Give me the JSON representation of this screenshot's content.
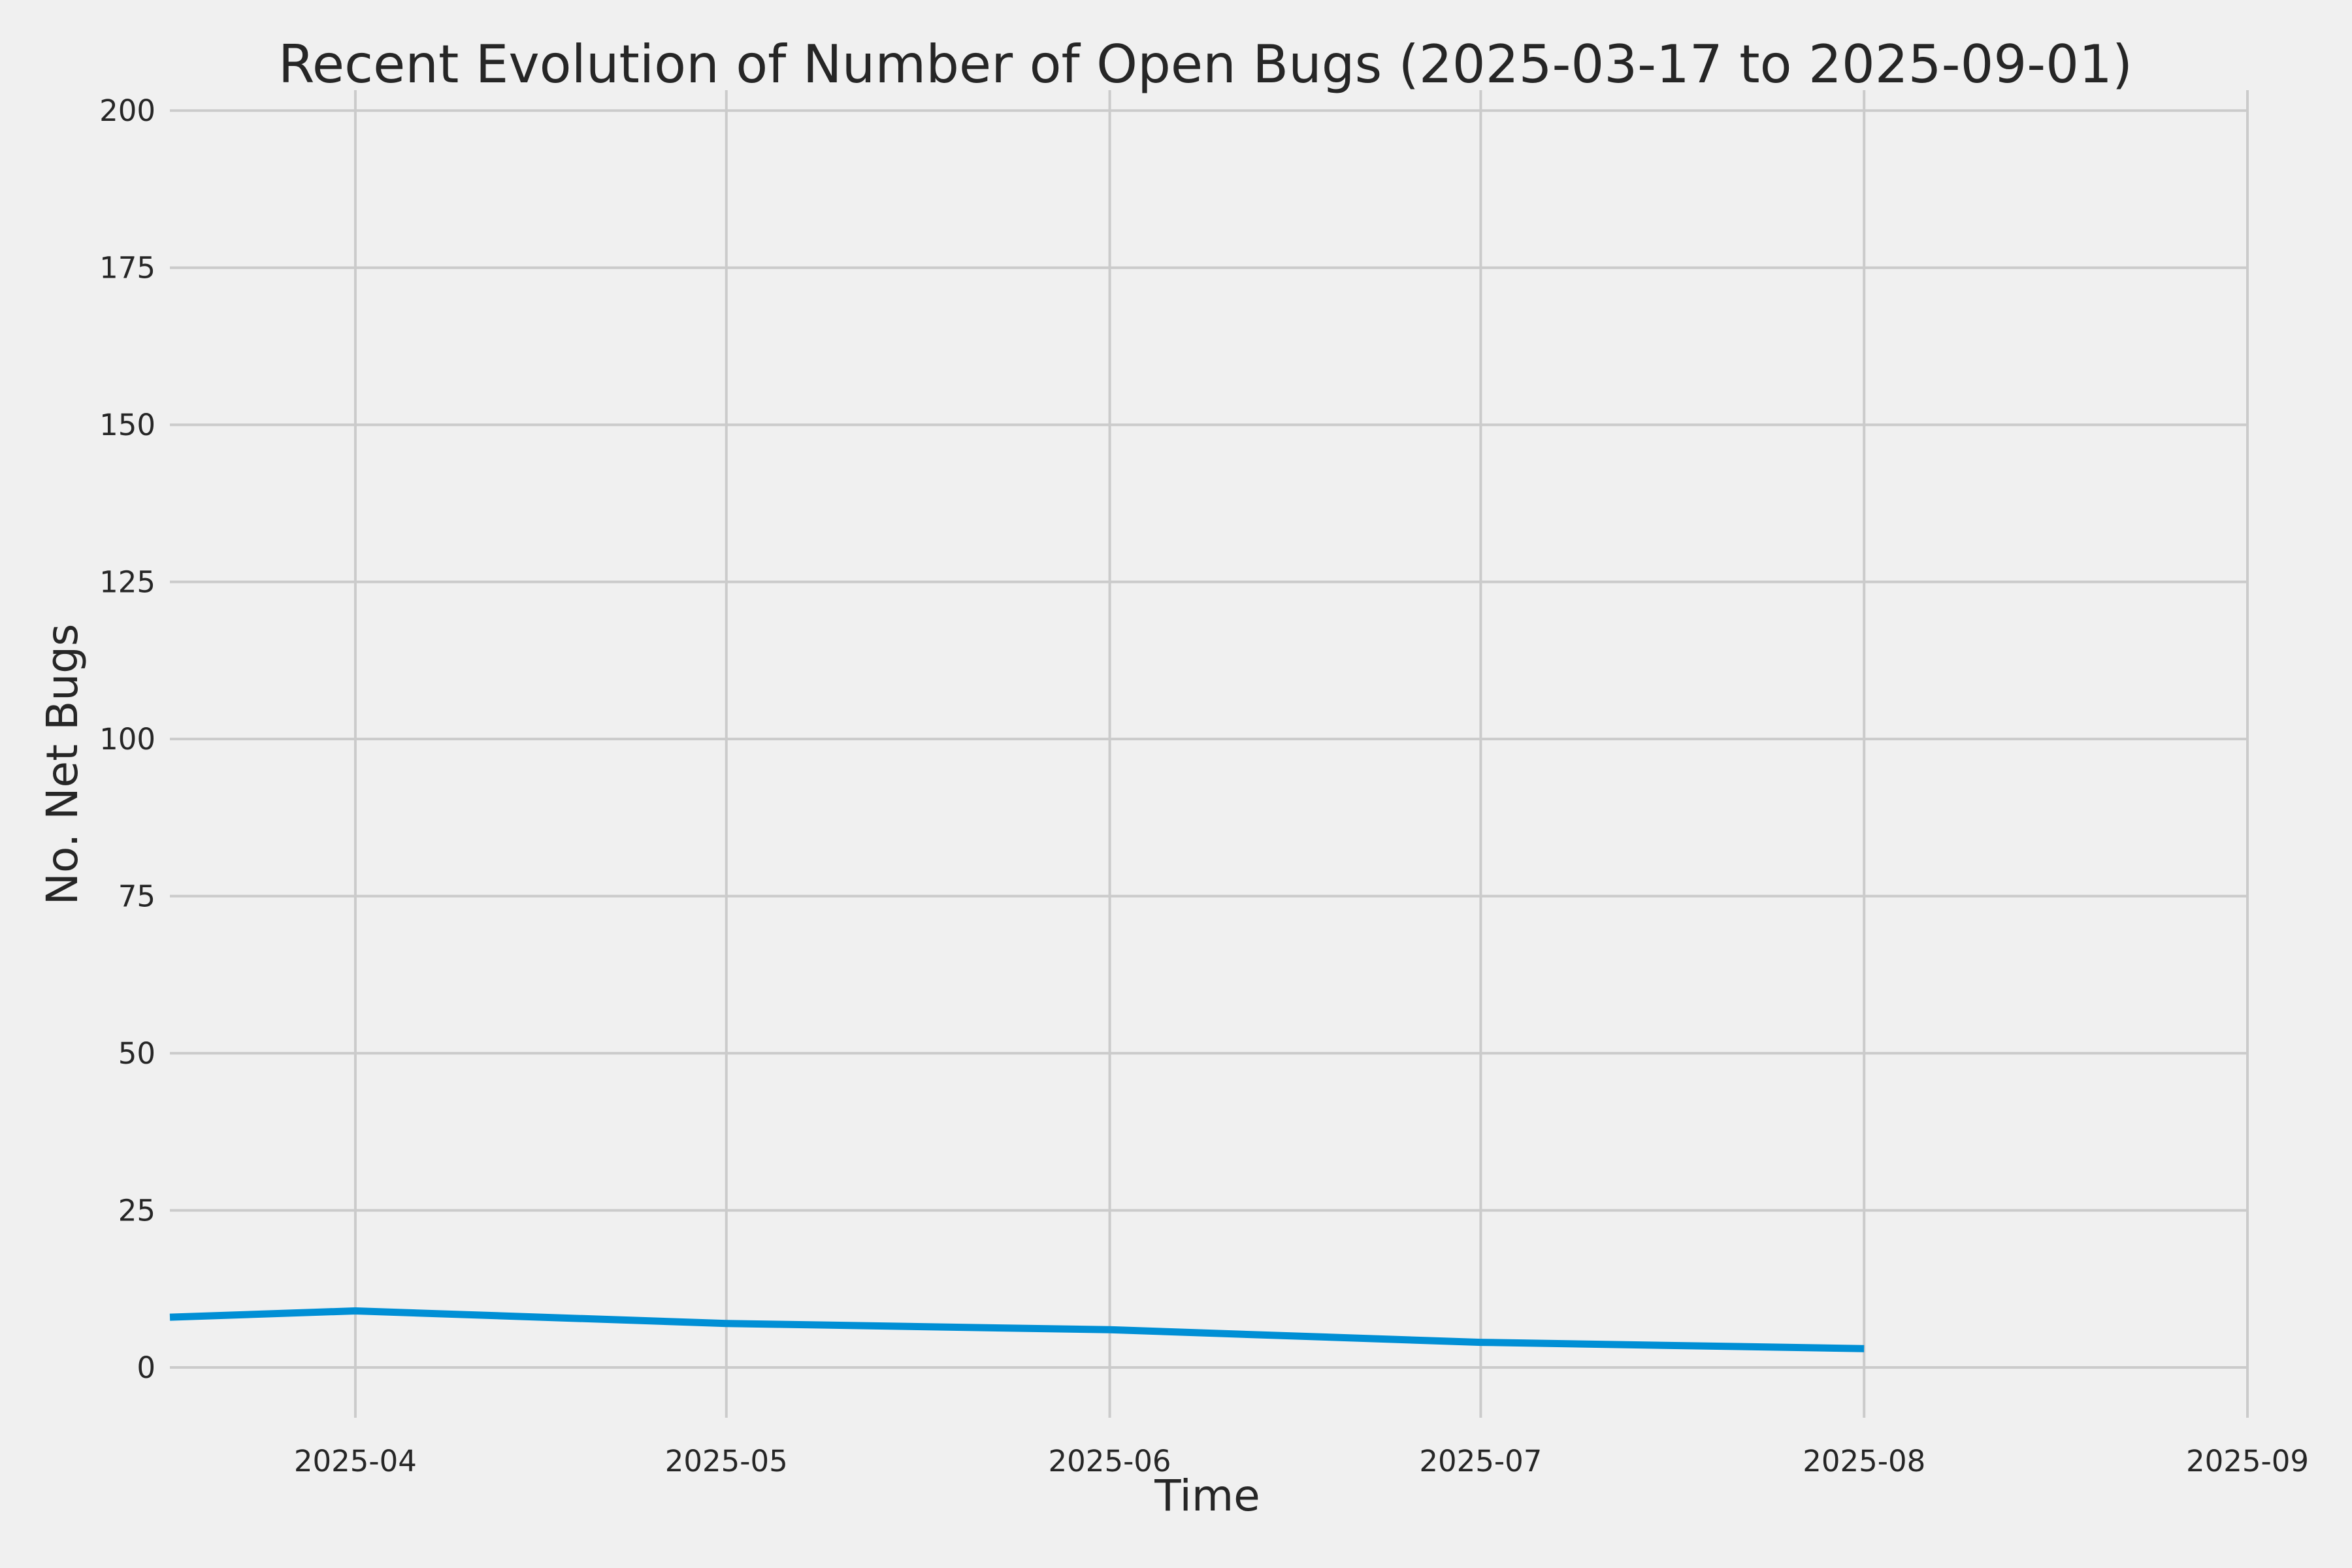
{
  "chart_data": {
    "type": "line",
    "title": "Recent Evolution of Number of Open Bugs (2025-03-17 to 2025-09-01)",
    "xlabel": "Time",
    "ylabel": "No. Net Bugs",
    "xlim": [
      "2025-03-17",
      "2025-09-01"
    ],
    "ylim": [
      -8,
      202
    ],
    "grid": true,
    "x_ticks": [
      "2025-04",
      "2025-05",
      "2025-06",
      "2025-07",
      "2025-08",
      "2025-09"
    ],
    "x_tick_dates": [
      "2025-04-01",
      "2025-05-01",
      "2025-06-01",
      "2025-07-01",
      "2025-08-01",
      "2025-09-01"
    ],
    "y_ticks": [
      0,
      25,
      50,
      75,
      100,
      125,
      150,
      175,
      200
    ],
    "series": [
      {
        "color": "#008fd5",
        "x": [
          "2025-03-17",
          "2025-04-01",
          "2025-05-01",
          "2025-06-01",
          "2025-07-01",
          "2025-08-01"
        ],
        "values": [
          8,
          9,
          7,
          6,
          4,
          3
        ]
      }
    ]
  }
}
